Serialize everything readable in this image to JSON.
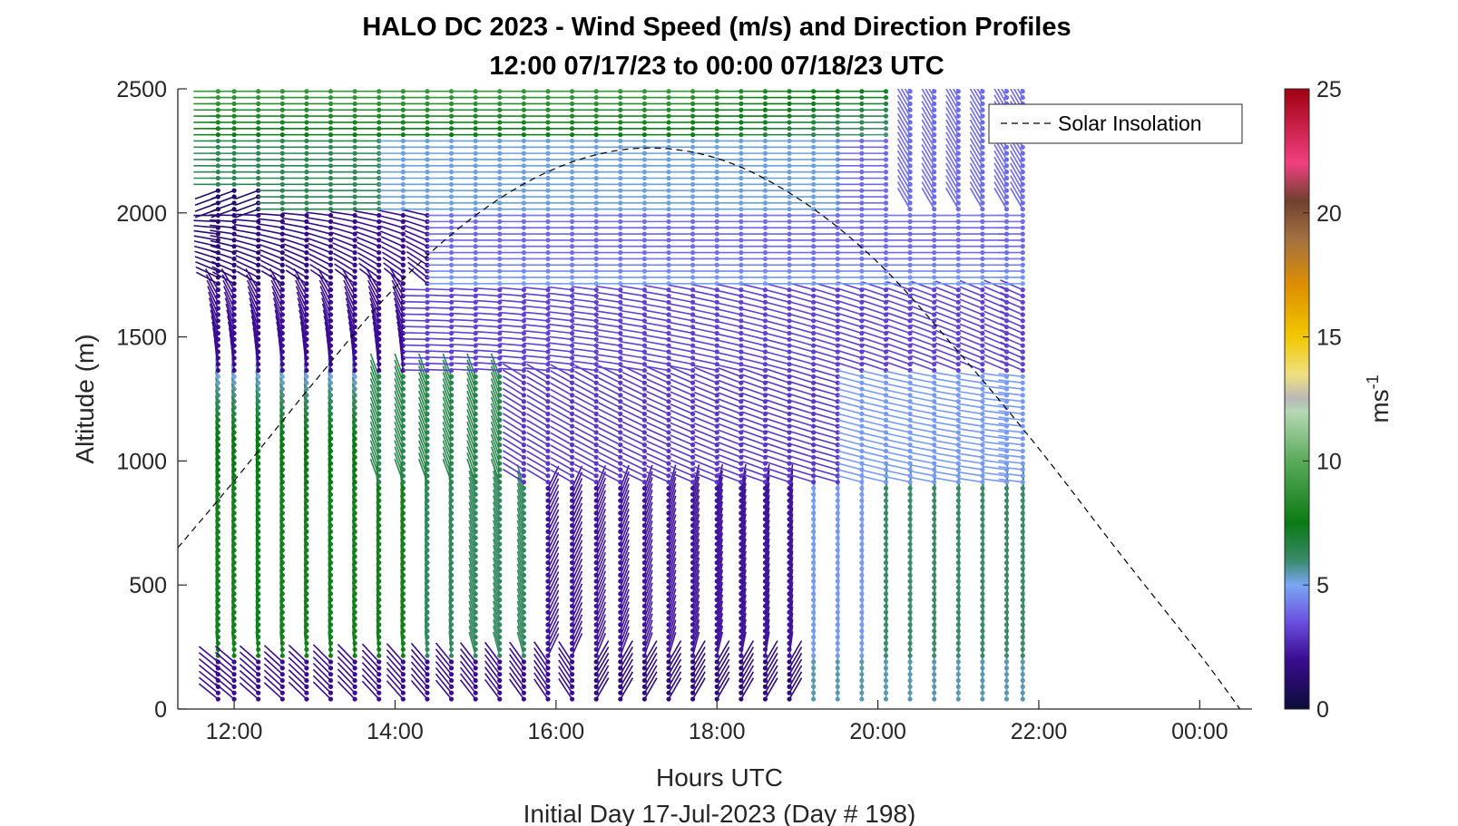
{
  "chart_data": {
    "type": "quiver",
    "title": "HALO DC 2023 - Wind Speed (m/s) and Direction Profiles",
    "subtitle": "12:00 07/17/23 to 00:00 07/18/23  UTC",
    "xlabel": "Hours UTC",
    "xlabel2": "Initial Day 17-Jul-2023 (Day # 198)",
    "ylabel": "Altitude (m)",
    "xlim": [
      11.3,
      24.65
    ],
    "ylim": [
      0,
      2500
    ],
    "x_ticks": [
      {
        "value": 12,
        "label": "12:00"
      },
      {
        "value": 14,
        "label": "14:00"
      },
      {
        "value": 16,
        "label": "16:00"
      },
      {
        "value": 18,
        "label": "18:00"
      },
      {
        "value": 20,
        "label": "20:00"
      },
      {
        "value": 22,
        "label": "22:00"
      },
      {
        "value": 24,
        "label": "00:00"
      }
    ],
    "y_ticks": [
      {
        "value": 0,
        "label": "0"
      },
      {
        "value": 500,
        "label": "500"
      },
      {
        "value": 1000,
        "label": "1000"
      },
      {
        "value": 1500,
        "label": "1500"
      },
      {
        "value": 2000,
        "label": "2000"
      },
      {
        "value": 2500,
        "label": "2500"
      }
    ],
    "legend": {
      "entries": [
        {
          "label": "Solar Insolation",
          "style": "dashed",
          "color": "#000000"
        }
      ],
      "position": "top-right"
    },
    "solar_insolation": {
      "x": [
        11.3,
        12.0,
        13.0,
        14.0,
        15.0,
        16.0,
        17.0,
        18.0,
        19.0,
        20.0,
        21.0,
        22.0,
        23.0,
        24.0,
        24.5
      ],
      "y": [
        650,
        920,
        1320,
        1700,
        1990,
        2180,
        2260,
        2220,
        2060,
        1800,
        1440,
        1050,
        630,
        220,
        0
      ]
    },
    "wind_profiles": {
      "profile_times_hours": [
        11.8,
        12.0,
        12.3,
        12.6,
        12.9,
        13.2,
        13.5,
        13.8,
        14.1,
        14.4,
        14.7,
        15.0,
        15.3,
        15.6,
        15.9,
        16.2,
        16.5,
        16.8,
        17.1,
        17.4,
        17.7,
        18.0,
        18.3,
        18.6,
        18.9,
        19.2,
        19.5,
        19.8,
        20.1,
        20.4,
        20.7,
        21.0,
        21.3,
        21.6,
        21.8
      ],
      "altitude_step_m": 25,
      "altitude_max_m": 2500,
      "description": "Wind barbs (stick with dot) at each time/altitude; colored by speed"
    },
    "colorbar": {
      "label": "ms",
      "label_exponent": "-1",
      "min": 0,
      "max": 25,
      "ticks": [
        0,
        5,
        10,
        15,
        20,
        25
      ],
      "position": "right"
    },
    "colors": {
      "axis": "#262626",
      "speed_stops": [
        {
          "v": 0,
          "c": "#0c0c3a"
        },
        {
          "v": 2,
          "c": "#3a0c90"
        },
        {
          "v": 3.5,
          "c": "#6a4ee0"
        },
        {
          "v": 5,
          "c": "#7aa6f4"
        },
        {
          "v": 6,
          "c": "#3a8a6a"
        },
        {
          "v": 7.5,
          "c": "#0a7a14"
        },
        {
          "v": 10,
          "c": "#5aaa5a"
        },
        {
          "v": 12,
          "c": "#b6d8b4"
        },
        {
          "v": 12.5,
          "c": "#b8b8b8"
        },
        {
          "v": 13.5,
          "c": "#f0e080"
        },
        {
          "v": 15,
          "c": "#f0c800"
        },
        {
          "v": 17,
          "c": "#e09000"
        },
        {
          "v": 19,
          "c": "#a07040"
        },
        {
          "v": 20.5,
          "c": "#704030"
        },
        {
          "v": 22,
          "c": "#f04080"
        },
        {
          "v": 25,
          "c": "#a00010"
        }
      ]
    }
  }
}
